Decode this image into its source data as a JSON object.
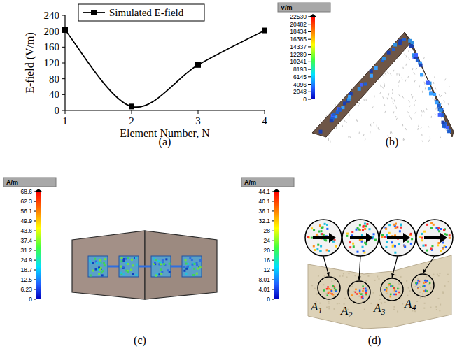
{
  "chart_data": {
    "type": "line",
    "x_label": "Element Number, N",
    "y_label": "E-field (V/m)",
    "x": [
      1,
      2,
      3,
      4
    ],
    "series": [
      {
        "name": "Simulated E-field",
        "color": "#000000",
        "values": [
          203,
          10,
          115,
          202
        ],
        "marker": "square",
        "line_style": "solid"
      }
    ],
    "xlim": [
      1,
      4
    ],
    "xticks": [
      1,
      2,
      3,
      4
    ],
    "ylim": [
      0,
      240
    ],
    "yticks": [
      0,
      40,
      80,
      120,
      160,
      200,
      240
    ],
    "grid": false,
    "legend": "top"
  },
  "panels": [
    {
      "caption": "(a)"
    },
    {
      "caption": "(b)",
      "colorbar": {
        "unit": "V/m",
        "range": [
          0,
          22530
        ],
        "ticks": [
          22530,
          20482,
          18434,
          16385,
          14337,
          12289,
          10241,
          8193,
          6145,
          4096,
          2048,
          0
        ]
      }
    },
    {
      "caption": "(c)",
      "colorbar": {
        "unit": "A/m",
        "range": [
          0,
          68.6
        ],
        "ticks": [
          68.6,
          62.3,
          56.1,
          49.9,
          43.6,
          37.4,
          31.2,
          24.9,
          18.7,
          12.5,
          6.23,
          0
        ]
      }
    },
    {
      "caption": "(d)",
      "colorbar": {
        "unit": "A/m",
        "range": [
          0,
          44.1
        ],
        "ticks": [
          44.1,
          40.1,
          36.1,
          32.1,
          28,
          24,
          20,
          16,
          12,
          8.01,
          4.01,
          0
        ]
      },
      "labels": [
        {
          "letter": "A",
          "sub": "1"
        },
        {
          "letter": "A",
          "sub": "2"
        },
        {
          "letter": "A",
          "sub": "3"
        },
        {
          "letter": "A",
          "sub": "4"
        }
      ]
    }
  ]
}
